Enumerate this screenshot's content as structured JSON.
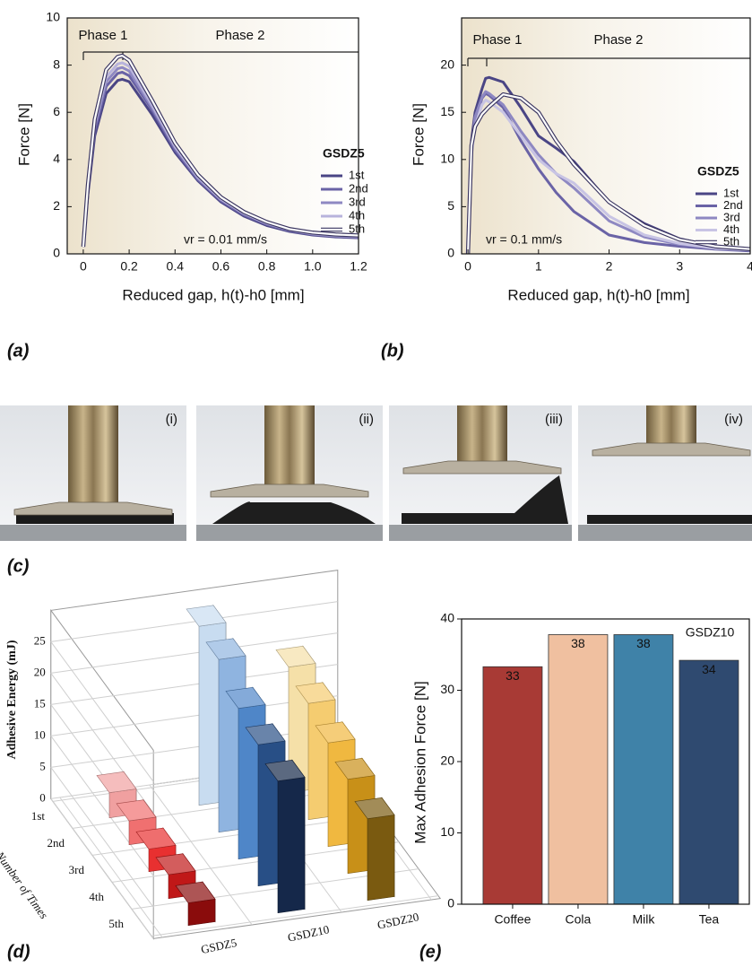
{
  "chart_data": [
    {
      "type": "line",
      "panel_label": "(a)",
      "x_label": "Reduced gap, h(t)-h0 [mm]",
      "y_label": "Force [N]",
      "annotations": [
        "Phase 1",
        "Phase 2",
        "vr = 0.01 mm/s"
      ],
      "legend_title": "GSDZ5",
      "x": [
        0,
        0.02,
        0.05,
        0.1,
        0.15,
        0.17,
        0.2,
        0.3,
        0.4,
        0.5,
        0.6,
        0.7,
        0.8,
        0.9,
        1.0,
        1.1,
        1.2
      ],
      "series": [
        {
          "name": "1st",
          "color": "#4a4585",
          "values": [
            0.3,
            2.5,
            5.0,
            6.8,
            7.35,
            7.4,
            7.3,
            5.9,
            4.3,
            3.1,
            2.2,
            1.6,
            1.2,
            0.95,
            0.8,
            0.72,
            0.68
          ]
        },
        {
          "name": "2nd",
          "color": "#6a63a6",
          "values": [
            0.3,
            2.6,
            5.2,
            7.1,
            7.65,
            7.7,
            7.55,
            6.1,
            4.4,
            3.15,
            2.25,
            1.65,
            1.25,
            0.98,
            0.82,
            0.74,
            0.7
          ]
        },
        {
          "name": "3rd",
          "color": "#8e88c2",
          "values": [
            0.3,
            2.7,
            5.4,
            7.3,
            7.85,
            7.9,
            7.75,
            6.2,
            4.5,
            3.2,
            2.3,
            1.7,
            1.28,
            1.0,
            0.84,
            0.76,
            0.72
          ]
        },
        {
          "name": "4th",
          "color": "#b8b3dc",
          "values": [
            0.3,
            2.8,
            5.5,
            7.5,
            8.05,
            8.1,
            7.95,
            6.3,
            4.55,
            3.25,
            2.32,
            1.72,
            1.3,
            1.02,
            0.86,
            0.78,
            0.74
          ]
        },
        {
          "name": "5th",
          "color": "#ffffff",
          "outline": "#3a3560",
          "values": [
            0.3,
            2.9,
            5.7,
            7.8,
            8.35,
            8.4,
            8.2,
            6.5,
            4.7,
            3.35,
            2.4,
            1.78,
            1.35,
            1.05,
            0.9,
            0.82,
            0.78
          ]
        }
      ],
      "xlim": [
        -0.07,
        1.2
      ],
      "ylim": [
        0,
        10
      ],
      "xticks": [
        0,
        0.2,
        0.4,
        0.6,
        0.8,
        {
          "value": 1,
          "label": "1.0"
        },
        1.2
      ],
      "yticks": [
        0,
        2,
        4,
        6,
        8,
        10
      ]
    },
    {
      "type": "line",
      "panel_label": "(b)",
      "x_label": "Reduced gap, h(t)-h0 [mm]",
      "y_label": "Force [N]",
      "annotations": [
        "Phase 1",
        "Phase 2",
        "vr = 0.1 mm/s"
      ],
      "legend_title": "GSDZ5",
      "x": [
        0,
        0.05,
        0.1,
        0.2,
        0.25,
        0.3,
        0.5,
        0.75,
        1,
        1.25,
        1.5,
        2,
        2.5,
        3,
        3.5,
        4
      ],
      "series": [
        {
          "name": "1st",
          "color": "#4a4585",
          "values": [
            0,
            12,
            15,
            17.5,
            18.6,
            18.7,
            18.2,
            15.5,
            12.5,
            11.2,
            9.8,
            5.5,
            3.2,
            1.6,
            0.8,
            0.5
          ]
        },
        {
          "name": "2nd",
          "color": "#6a63a6",
          "values": [
            0,
            11,
            14,
            16.5,
            17,
            16.8,
            15.5,
            12,
            9,
            6.5,
            4.5,
            2,
            1.2,
            0.8,
            0.5,
            0.3
          ]
        },
        {
          "name": "3rd",
          "color": "#8e88c2",
          "values": [
            0,
            11,
            14.5,
            16.6,
            17.2,
            17,
            15.8,
            13,
            10.5,
            8.5,
            7,
            3.5,
            1.8,
            1,
            0.6,
            0.4
          ]
        },
        {
          "name": "4th",
          "color": "#c8c4e4",
          "values": [
            0,
            10.5,
            13.5,
            15.8,
            16.3,
            16.1,
            15,
            12.5,
            10,
            8.5,
            7.5,
            4,
            2,
            1.1,
            0.6,
            0.4
          ]
        },
        {
          "name": "5th",
          "color": "#ffffff",
          "outline": "#3a3560",
          "values": [
            0,
            11.5,
            13.5,
            14.8,
            15.2,
            15.6,
            16.9,
            16.5,
            15,
            12,
            9.5,
            5.5,
            3,
            1.5,
            0.8,
            0.5
          ]
        }
      ],
      "xlim": [
        -0.09,
        4.0
      ],
      "ylim": [
        0,
        25
      ],
      "xticks": [
        0,
        1,
        2,
        3,
        4
      ],
      "yticks": [
        0,
        5,
        10,
        15,
        20
      ]
    },
    {
      "type": "bar3d",
      "panel_label": "(d)",
      "z_label": "Adhesive Energy (mJ)",
      "y_label": "Number of Times",
      "categories": [
        "GSDZ5",
        "GSDZ10",
        "GSDZ20"
      ],
      "series": [
        {
          "name": "1st",
          "values": [
            4.0,
            28.5,
            20.0
          ]
        },
        {
          "name": "2nd",
          "values": [
            3.8,
            27.5,
            18.5
          ]
        },
        {
          "name": "3rd",
          "values": [
            3.6,
            24.0,
            16.5
          ]
        },
        {
          "name": "4th",
          "values": [
            3.8,
            22.5,
            15.0
          ]
        },
        {
          "name": "5th",
          "values": [
            3.6,
            21.0,
            13.0
          ]
        }
      ],
      "cell_colors": [
        [
          "#f0a0a0",
          "#f07070",
          "#e83030",
          "#c01818",
          "#8a0c0c"
        ],
        [
          "#c8dcf0",
          "#8fb4e0",
          "#4f86c8",
          "#284f86",
          "#15284a"
        ],
        [
          "#f5e0a8",
          "#f5cc70",
          "#f0b840",
          "#c89018",
          "#7a5a10"
        ]
      ],
      "zlim": [
        0,
        30
      ],
      "zticks": [
        0,
        5,
        10,
        15,
        20,
        25
      ]
    },
    {
      "type": "bar",
      "panel_label": "(e)",
      "y_label": "Max Adhesion Force [N]",
      "annotations": [
        "GSDZ10"
      ],
      "categories": [
        "Coffee",
        "Cola",
        "Milk",
        "Tea"
      ],
      "values": [
        33.3,
        37.8,
        37.8,
        34.2
      ],
      "value_labels": [
        "33",
        "38",
        "38",
        "34"
      ],
      "colors": [
        "#a83a35",
        "#f0c0a0",
        "#3f82a8",
        "#2f4a70"
      ],
      "ylim": [
        0,
        40
      ],
      "yticks": [
        0,
        10,
        20,
        30,
        40
      ]
    }
  ],
  "photo_panel": {
    "panel_label": "(c)",
    "frames": [
      "(i)",
      "(ii)",
      "(iii)",
      "(iv)"
    ]
  }
}
